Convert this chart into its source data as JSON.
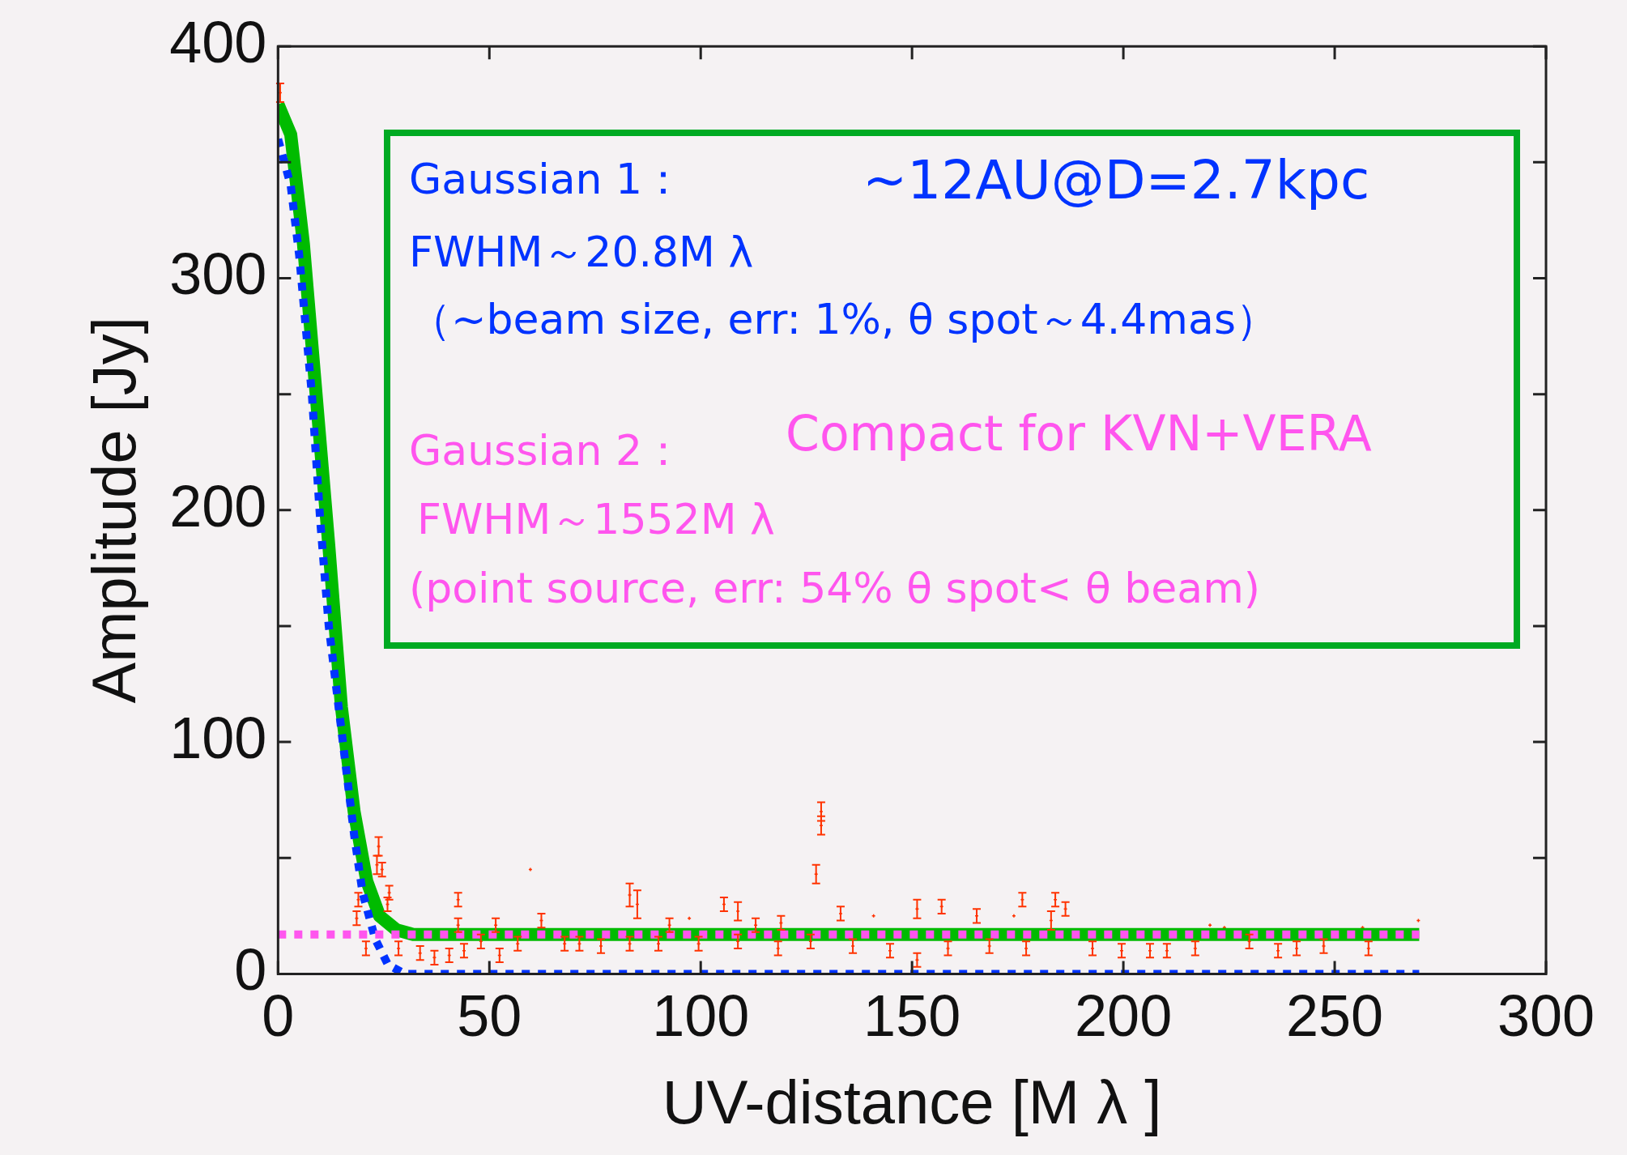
{
  "chart_data": {
    "type": "scatter",
    "xlabel": "UV-distance [M λ ]",
    "ylabel": "Amplitude [Jy]",
    "xlim": [
      0,
      300
    ],
    "xticks": [
      0,
      50,
      100,
      150,
      200,
      250,
      300
    ],
    "ylim": [
      0,
      400
    ],
    "yticks": [
      0,
      {
        "value": 50,
        "label": null
      },
      100,
      {
        "value": 150,
        "label": null
      },
      200,
      {
        "value": 250,
        "label": null
      },
      300,
      {
        "value": 350,
        "label": null
      },
      400
    ],
    "grid": false,
    "legend": false,
    "series": [
      {
        "type": "scatter",
        "marker": "cross",
        "color": "#ff3300",
        "x": [
          0.5,
          19,
          18.6,
          20.8,
          23.4,
          23.8,
          24.6,
          25.9,
          26.3,
          28.5,
          33.6,
          37,
          40.5,
          42.6,
          42.6,
          44,
          48,
          51.5,
          52.4,
          56.7,
          59.7,
          62.3,
          67.8,
          71.3,
          76.4,
          83.2,
          83.2,
          85,
          90,
          92.6,
          97.3,
          99.5,
          105.5,
          108.8,
          108.8,
          113,
          118.3,
          119,
          126,
          127.3,
          128.5,
          128.5,
          133.1,
          136,
          140.9,
          144.8,
          151.2,
          151.2,
          157,
          158.5,
          165.3,
          168.3,
          174.1,
          176.1,
          177,
          182.9,
          183.9,
          186.3,
          192.7,
          199.6,
          206.3,
          210.3,
          217,
          220.5,
          223.9,
          229.8,
          236.6,
          241,
          247.4,
          256.6,
          258,
          269.8
        ],
        "values": [
          380,
          32,
          24,
          11,
          47,
          55,
          45,
          30,
          35,
          11,
          9,
          7,
          8,
          32,
          21,
          10,
          14,
          21,
          8,
          13,
          45,
          23,
          13,
          13,
          12,
          34,
          13,
          30,
          13,
          21,
          24,
          13,
          30,
          27,
          14,
          21,
          11,
          22,
          14,
          43,
          70,
          64,
          26,
          12,
          25,
          10,
          28,
          6,
          29,
          11,
          25,
          12,
          25,
          32,
          11,
          23,
          32,
          28,
          11,
          10,
          10,
          10,
          11,
          21,
          20,
          14,
          10,
          11,
          12,
          20,
          11,
          23
        ],
        "errors": [
          4,
          3,
          3,
          3,
          4,
          4,
          3,
          3,
          3,
          3,
          3,
          3,
          3,
          3,
          3,
          3,
          3,
          3,
          3,
          3,
          null,
          3,
          3,
          3,
          3,
          5,
          3,
          6,
          3,
          3,
          null,
          3,
          3,
          4,
          3,
          3,
          3,
          3,
          3,
          4,
          4,
          4,
          3,
          3,
          null,
          3,
          4,
          3,
          3,
          3,
          3,
          3,
          null,
          3,
          3,
          4,
          3,
          3,
          3,
          3,
          3,
          3,
          3,
          null,
          null,
          3,
          3,
          3,
          3,
          null,
          3,
          null
        ]
      },
      {
        "type": "line",
        "line_style": "solid",
        "color": "#00bb00",
        "x": [
          0,
          3,
          6,
          9,
          12,
          15,
          18,
          21,
          24,
          28,
          32,
          270
        ],
        "values": [
          375,
          362,
          315,
          250,
          185,
          115,
          70,
          40,
          25,
          19,
          17,
          17
        ]
      },
      {
        "type": "line",
        "line_style": "dotted",
        "color": "#0033ff",
        "x": [
          0,
          3,
          5,
          8,
          10,
          12,
          15,
          18,
          20,
          23,
          26,
          30,
          270
        ],
        "values": [
          360,
          340,
          310,
          250,
          195,
          150,
          105,
          60,
          35,
          15,
          4,
          0,
          0
        ]
      },
      {
        "type": "line",
        "line_style": "dotted",
        "color": "#ff55ee",
        "x": [
          0,
          270
        ],
        "values": [
          17,
          17
        ]
      }
    ],
    "annotations": [
      "Gaussian 1：",
      "FWHM～20.8M λ",
      "（~beam size, err: 1%, θ spot～4.4mas）",
      "~12AU@D=2.7kpc",
      "Gaussian 2：",
      "Compact for KVN+VERA",
      " FWHM～1552M λ",
      "(point source, err: 54% θ spot< θ beam)"
    ]
  }
}
